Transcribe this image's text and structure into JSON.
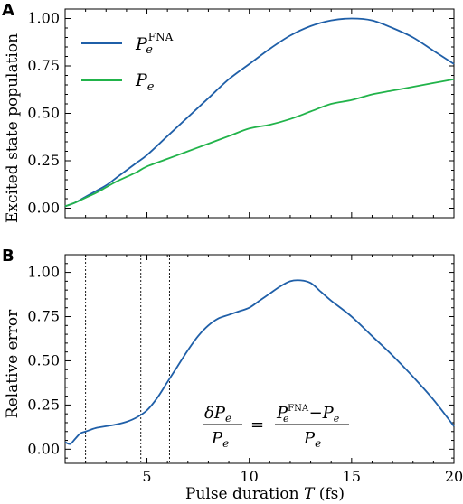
{
  "colors": {
    "fna": "#1f5fa8",
    "pe": "#21b34a",
    "error": "#1f5fa8",
    "axis": "#000000"
  },
  "chart_data": [
    {
      "panel": "A",
      "type": "line",
      "ylabel": "Excited state population",
      "xlim": [
        1,
        20
      ],
      "ylim": [
        -0.05,
        1.05
      ],
      "xticks": [
        5,
        10,
        15,
        20
      ],
      "yticks": [
        0.0,
        0.25,
        0.5,
        0.75,
        1.0
      ],
      "ytick_labels": [
        "0.00",
        "0.25",
        "0.50",
        "0.75",
        "1.00"
      ],
      "legend": {
        "placement": "top-left"
      },
      "series": [
        {
          "key": "fna",
          "name_base": "P",
          "name_sub": "e",
          "name_sup": "FNA",
          "x": [
            1,
            1.5,
            2,
            2.5,
            3,
            3.5,
            4,
            4.5,
            5,
            6,
            7,
            8,
            9,
            10,
            11,
            12,
            13,
            14,
            15,
            16,
            17,
            18,
            19,
            20
          ],
          "y": [
            0.01,
            0.03,
            0.06,
            0.09,
            0.12,
            0.16,
            0.2,
            0.24,
            0.28,
            0.38,
            0.48,
            0.58,
            0.68,
            0.76,
            0.84,
            0.91,
            0.96,
            0.99,
            1.0,
            0.99,
            0.95,
            0.9,
            0.83,
            0.76
          ]
        },
        {
          "key": "pe",
          "name_base": "P",
          "name_sub": "e",
          "name_sup": "",
          "x": [
            1,
            1.5,
            2,
            2.5,
            3,
            3.5,
            4,
            4.5,
            5,
            6,
            7,
            8,
            9,
            10,
            11,
            12,
            13,
            14,
            15,
            16,
            17,
            18,
            19,
            20
          ],
          "y": [
            0.01,
            0.03,
            0.055,
            0.08,
            0.11,
            0.14,
            0.165,
            0.19,
            0.22,
            0.26,
            0.3,
            0.34,
            0.38,
            0.42,
            0.44,
            0.47,
            0.51,
            0.55,
            0.57,
            0.6,
            0.62,
            0.64,
            0.66,
            0.68
          ]
        }
      ]
    },
    {
      "panel": "B",
      "type": "line",
      "xlabel_text": "Pulse duration ",
      "xlabel_var": "T",
      "xlabel_unit": " (fs)",
      "ylabel": "Relative error",
      "xlim": [
        1,
        20
      ],
      "ylim": [
        -0.08,
        1.1
      ],
      "xticks": [
        5,
        10,
        15,
        20
      ],
      "yticks": [
        0.0,
        0.25,
        0.5,
        0.75,
        1.0
      ],
      "ytick_labels": [
        "0.00",
        "0.25",
        "0.50",
        "0.75",
        "1.00"
      ],
      "vlines": [
        2.0,
        4.7,
        6.1
      ],
      "annotation": {
        "lhs_num": "δP",
        "lhs_num_sub": "e",
        "lhs_den": "P",
        "lhs_den_sub": "e",
        "equals": "=",
        "rhs_num_a": "P",
        "rhs_num_a_sup": "FNA",
        "rhs_num_a_sub": "e",
        "rhs_minus": "−",
        "rhs_num_b": "P",
        "rhs_num_b_sub": "e",
        "rhs_den": "P",
        "rhs_den_sub": "e"
      },
      "series": [
        {
          "key": "error",
          "x": [
            1,
            1.25,
            1.5,
            1.75,
            2,
            2.5,
            3,
            3.5,
            4,
            4.5,
            5,
            5.5,
            6,
            6.5,
            7,
            7.5,
            8,
            8.5,
            9,
            9.5,
            10,
            10.5,
            11,
            11.5,
            12,
            12.5,
            13,
            13.5,
            14,
            15,
            16,
            17,
            18,
            19,
            20
          ],
          "y": [
            0.04,
            0.03,
            0.06,
            0.09,
            0.1,
            0.12,
            0.13,
            0.14,
            0.155,
            0.18,
            0.22,
            0.29,
            0.38,
            0.47,
            0.56,
            0.64,
            0.7,
            0.74,
            0.76,
            0.78,
            0.8,
            0.84,
            0.88,
            0.92,
            0.95,
            0.955,
            0.94,
            0.89,
            0.84,
            0.75,
            0.64,
            0.53,
            0.41,
            0.28,
            0.13
          ]
        }
      ]
    }
  ]
}
